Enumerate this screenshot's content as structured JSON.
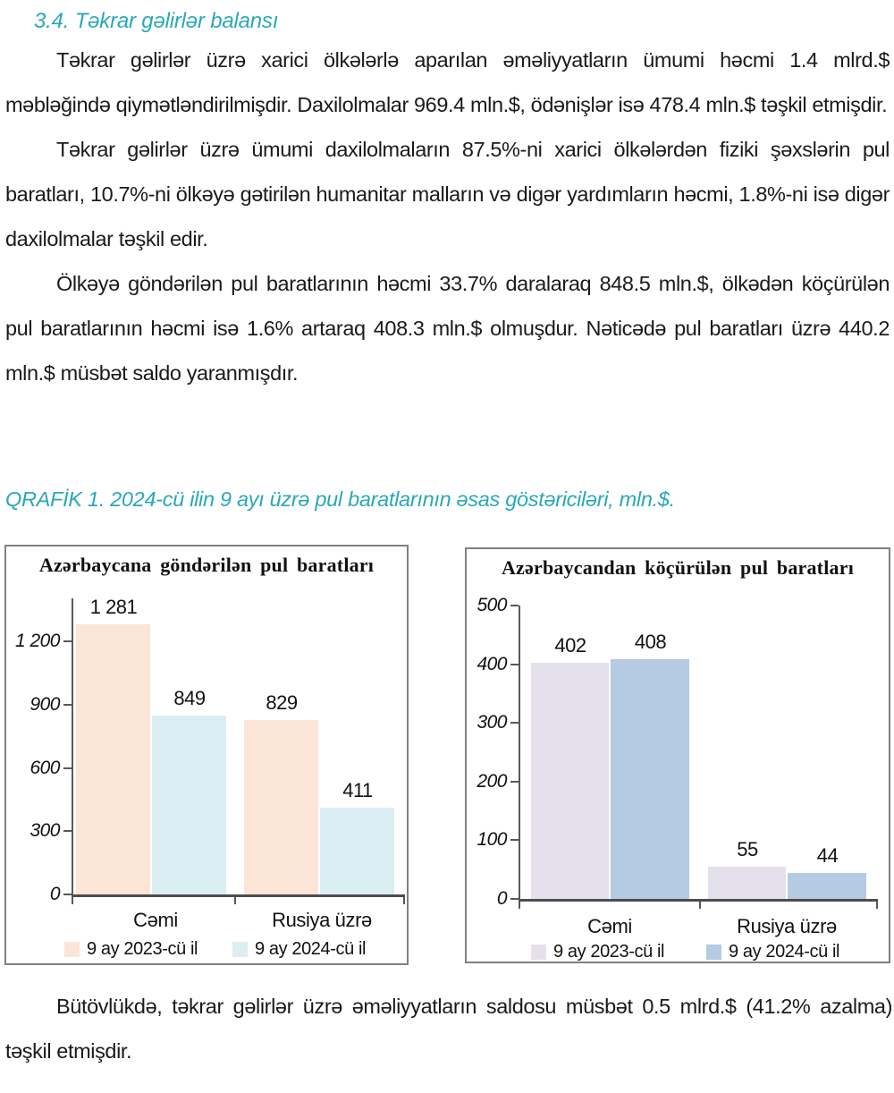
{
  "document": {
    "section_heading": "3.4. Təkrar gəlirlər balansı",
    "paragraphs": [
      "Təkrar gəlirlər üzrə xarici ölkələrlə aparılan əməliyyatların ümumi həcmi 1.4 mlrd.$ məbləğində qiymətləndirilmişdir. Daxilolmalar 969.4 mln.$, ödənişlər isə 478.4 mln.$ təşkil etmişdir.",
      "Təkrar gəlirlər üzrə ümumi daxilolmaların 87.5%-ni xarici ölkələrdən fiziki şəxslərin pul baratları, 10.7%-ni ölkəyə gətirilən humanitar malların və digər yardımların həcmi, 1.8%-ni isə digər daxilolmalar təşkil edir.",
      "Ölkəyə göndərilən pul baratlarının həcmi 33.7% daralaraq 848.5 mln.$, ölkədən köçürülən pul baratlarının həcmi isə 1.6% artaraq 408.3 mln.$ olmuşdur. Nəticədə pul baratları üzrə 440.2 mln.$ müsbət saldo yaranmışdır."
    ],
    "figure_caption": "QRAFİK 1. 2024-cü ilin 9 ayı üzrə pul baratlarının əsas göstəriciləri, mln.$.",
    "closing_paragraph": "Bütövlükdə, təkrar gəlirlər üzrə əməliyyatların saldosu müsbət 0.5 mlrd.$ (41.2% azalma) təşkil etmişdir.",
    "accent_color": "#2AA8B8"
  },
  "chart_data": [
    {
      "type": "bar",
      "title": "Azərbaycana göndərilən pul baratları",
      "categories": [
        "Cəmi",
        "Rusiya üzrə"
      ],
      "series": [
        {
          "name": "9 ay 2023-cü il",
          "color": "#FBE5D6",
          "values": [
            1281,
            829
          ],
          "labels": [
            "1 281",
            "829"
          ]
        },
        {
          "name": "9 ay 2024-cü il",
          "color": "#DAEEF3",
          "values": [
            849,
            411
          ],
          "labels": [
            "849",
            "411"
          ]
        }
      ],
      "yticks": [
        {
          "value": 0,
          "label": "0"
        },
        {
          "value": 300,
          "label": "300"
        },
        {
          "value": 600,
          "label": "600"
        },
        {
          "value": 900,
          "label": "900"
        },
        {
          "value": 1200,
          "label": "1 200"
        }
      ],
      "ylim": [
        0,
        1405
      ],
      "grid": false,
      "legend_position": "bottom",
      "unit": "mln.$"
    },
    {
      "type": "bar",
      "title": "Azərbaycandan köçürülən pul baratları",
      "categories": [
        "Cəmi",
        "Rusiya üzrə"
      ],
      "series": [
        {
          "name": "9 ay 2023-cü il",
          "color": "#E4E0EC",
          "values": [
            402,
            55
          ],
          "labels": [
            "402",
            "55"
          ]
        },
        {
          "name": "9 ay 2024-cü il",
          "color": "#B4CBE3",
          "values": [
            408,
            44
          ],
          "labels": [
            "408",
            "44"
          ]
        }
      ],
      "yticks": [
        {
          "value": 0,
          "label": "0"
        },
        {
          "value": 100,
          "label": "100"
        },
        {
          "value": 200,
          "label": "200"
        },
        {
          "value": 300,
          "label": "300"
        },
        {
          "value": 400,
          "label": "400"
        },
        {
          "value": 500,
          "label": "500"
        }
      ],
      "ylim": [
        0,
        500
      ],
      "grid": false,
      "legend_position": "bottom",
      "unit": "mln.$"
    }
  ]
}
